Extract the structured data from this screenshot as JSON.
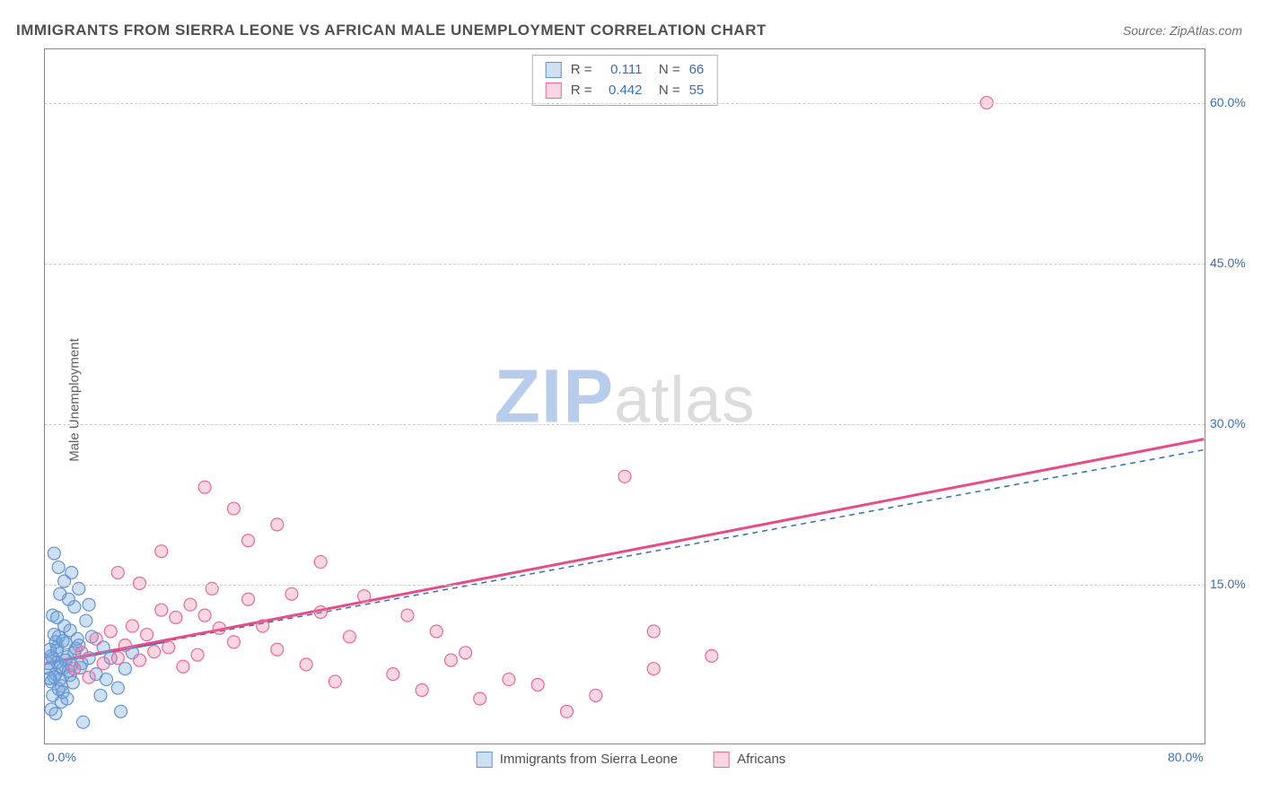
{
  "title": "IMMIGRANTS FROM SIERRA LEONE VS AFRICAN MALE UNEMPLOYMENT CORRELATION CHART",
  "source": "Source: ZipAtlas.com",
  "chart": {
    "type": "scatter",
    "xlabel": "",
    "ylabel": "Male Unemployment",
    "xlim": [
      0,
      80
    ],
    "ylim": [
      0,
      65
    ],
    "yticks": [
      {
        "v": 15,
        "label": "15.0%"
      },
      {
        "v": 30,
        "label": "30.0%"
      },
      {
        "v": 45,
        "label": "45.0%"
      },
      {
        "v": 60,
        "label": "60.0%"
      }
    ],
    "xticks": [
      {
        "v": 0,
        "label": "0.0%"
      },
      {
        "v": 80,
        "label": "80.0%"
      }
    ],
    "grid_color": "#d0d0d0",
    "border_color": "#888888",
    "background_color": "#ffffff",
    "marker_radius": 7,
    "series": [
      {
        "name": "Immigrants from Sierra Leone",
        "color_fill": "rgba(120,165,220,0.35)",
        "color_stroke": "#6294d0",
        "r_value": "0.111",
        "n_value": "66",
        "points": [
          [
            0.3,
            7
          ],
          [
            0.5,
            8
          ],
          [
            0.7,
            6.5
          ],
          [
            0.8,
            9
          ],
          [
            1,
            7.2
          ],
          [
            0.4,
            5.8
          ],
          [
            0.9,
            10
          ],
          [
            1.2,
            7
          ],
          [
            1.5,
            8.1
          ],
          [
            0.6,
            6.2
          ],
          [
            1.1,
            5.4
          ],
          [
            1.3,
            11
          ],
          [
            0.8,
            7.6
          ],
          [
            2,
            8.5
          ],
          [
            1.7,
            6.4
          ],
          [
            2.3,
            9.2
          ],
          [
            0.5,
            4.5
          ],
          [
            0.9,
            5.1
          ],
          [
            1.4,
            7.8
          ],
          [
            1,
            6
          ],
          [
            0.7,
            9.5
          ],
          [
            1.8,
            7.3
          ],
          [
            2.1,
            8.9
          ],
          [
            0.4,
            8.2
          ],
          [
            1.6,
            6.8
          ],
          [
            2.4,
            7.1
          ],
          [
            0.6,
            10.2
          ],
          [
            1.9,
            5.7
          ],
          [
            2.2,
            9.8
          ],
          [
            3,
            8
          ],
          [
            0.3,
            6.1
          ],
          [
            1.2,
            4.8
          ],
          [
            2.5,
            7.5
          ],
          [
            0.8,
            8.7
          ],
          [
            1.4,
            9.4
          ],
          [
            1.7,
            10.6
          ],
          [
            0.5,
            12
          ],
          [
            1,
            14
          ],
          [
            1.3,
            15.2
          ],
          [
            0.9,
            16.5
          ],
          [
            2,
            12.8
          ],
          [
            1.6,
            13.5
          ],
          [
            0.4,
            3.2
          ],
          [
            0.7,
            2.8
          ],
          [
            1.1,
            3.9
          ],
          [
            1.5,
            4.2
          ],
          [
            2.8,
            11.5
          ],
          [
            3.2,
            10
          ],
          [
            3.5,
            6.5
          ],
          [
            4,
            9
          ],
          [
            4.5,
            8
          ],
          [
            5,
            5.2
          ],
          [
            5.5,
            7
          ],
          [
            6,
            8.5
          ],
          [
            0.6,
            17.8
          ],
          [
            1.8,
            16
          ],
          [
            2.3,
            14.5
          ],
          [
            3,
            13
          ],
          [
            0.2,
            7.5
          ],
          [
            0.3,
            8.8
          ],
          [
            0.8,
            11.8
          ],
          [
            1.2,
            9.6
          ],
          [
            4.2,
            6
          ],
          [
            3.8,
            4.5
          ],
          [
            5.2,
            3
          ],
          [
            2.6,
            2
          ]
        ],
        "regression_solid": {
          "x1": 0,
          "y1": 7.5,
          "x2": 8.5,
          "y2": 9.6
        },
        "regression_dashed": {
          "x1": 0,
          "y1": 7.5,
          "x2": 80,
          "y2": 27.5
        },
        "line_color": "#2f6fbf"
      },
      {
        "name": "Africans",
        "color_fill": "rgba(235,120,160,0.30)",
        "color_stroke": "#e76a9a",
        "r_value": "0.442",
        "n_value": "55",
        "points": [
          [
            2,
            7
          ],
          [
            2.5,
            8.5
          ],
          [
            3,
            6.2
          ],
          [
            3.5,
            9.8
          ],
          [
            4,
            7.5
          ],
          [
            4.5,
            10.5
          ],
          [
            5,
            8
          ],
          [
            5.5,
            9.2
          ],
          [
            6,
            11
          ],
          [
            6.5,
            7.8
          ],
          [
            7,
            10.2
          ],
          [
            7.5,
            8.6
          ],
          [
            8,
            12.5
          ],
          [
            8.5,
            9
          ],
          [
            9,
            11.8
          ],
          [
            9.5,
            7.2
          ],
          [
            10,
            13
          ],
          [
            10.5,
            8.3
          ],
          [
            11,
            12
          ],
          [
            11.5,
            14.5
          ],
          [
            12,
            10.8
          ],
          [
            13,
            9.5
          ],
          [
            14,
            13.5
          ],
          [
            15,
            11
          ],
          [
            16,
            8.8
          ],
          [
            17,
            14
          ],
          [
            18,
            7.4
          ],
          [
            19,
            12.3
          ],
          [
            20,
            5.8
          ],
          [
            21,
            10
          ],
          [
            22,
            13.8
          ],
          [
            11,
            24
          ],
          [
            13,
            22
          ],
          [
            16,
            20.5
          ],
          [
            8,
            18
          ],
          [
            14,
            19
          ],
          [
            24,
            6.5
          ],
          [
            26,
            5
          ],
          [
            28,
            7.8
          ],
          [
            30,
            4.2
          ],
          [
            32,
            6
          ],
          [
            34,
            5.5
          ],
          [
            25,
            12
          ],
          [
            27,
            10.5
          ],
          [
            29,
            8.5
          ],
          [
            36,
            3
          ],
          [
            38,
            4.5
          ],
          [
            42,
            10.5
          ],
          [
            40,
            25
          ],
          [
            42,
            7
          ],
          [
            46,
            8.2
          ],
          [
            65,
            60
          ],
          [
            5,
            16
          ],
          [
            6.5,
            15
          ],
          [
            19,
            17
          ]
        ],
        "regression_solid": {
          "x1": 0,
          "y1": 7.5,
          "x2": 80,
          "y2": 28.5
        },
        "line_color": "#e94b87"
      }
    ],
    "watermark_zip": "ZIP",
    "watermark_rest": "atlas",
    "bottom_legend": [
      {
        "label": "Immigrants from Sierra Leone",
        "fill": "rgba(120,165,220,0.35)",
        "stroke": "#6294d0"
      },
      {
        "label": "Africans",
        "fill": "rgba(235,120,160,0.30)",
        "stroke": "#e76a9a"
      }
    ]
  }
}
